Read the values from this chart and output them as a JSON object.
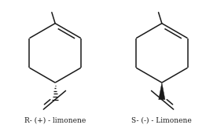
{
  "background_color": "#ffffff",
  "label_left": "R- (+) - limonene",
  "label_right": "S- (-) - Limonene",
  "label_fontsize": 6.5,
  "line_color": "#1a1a1a",
  "line_width": 1.1,
  "fig_width": 2.76,
  "fig_height": 1.73
}
